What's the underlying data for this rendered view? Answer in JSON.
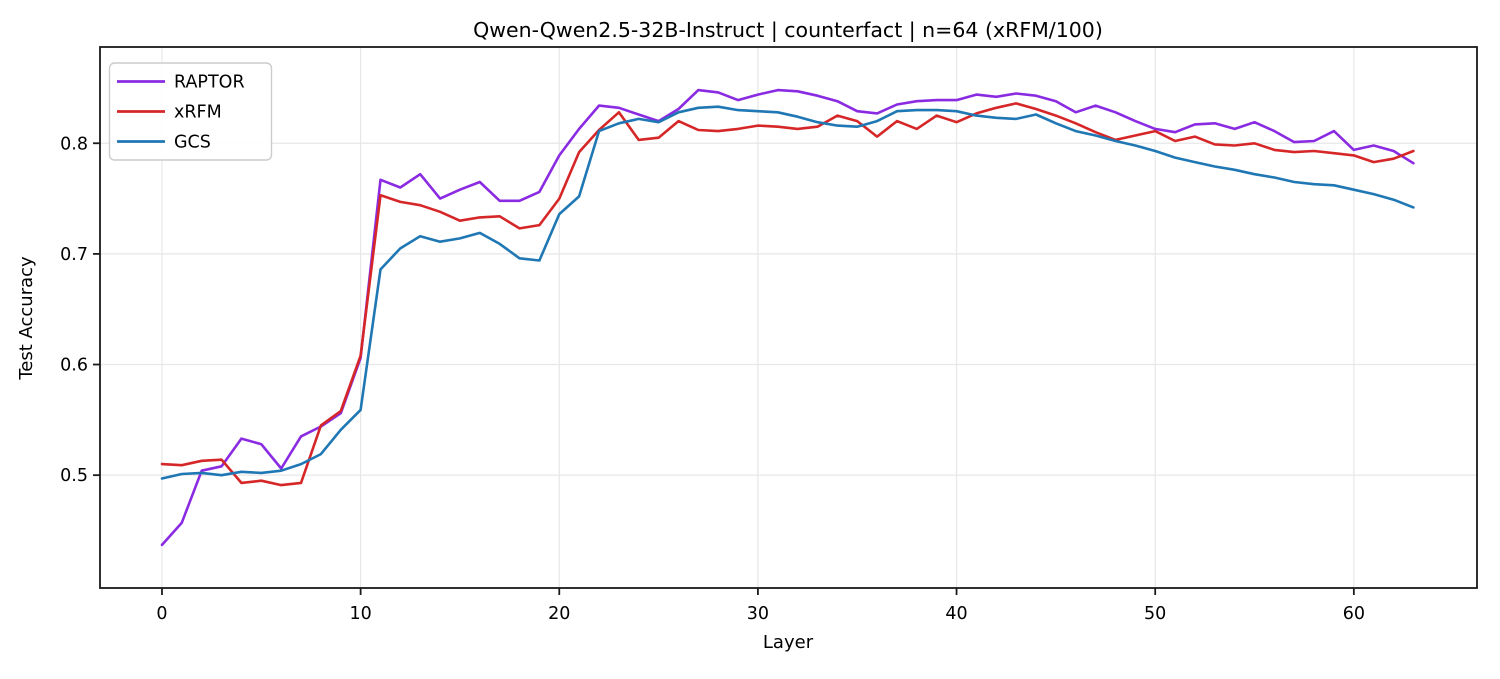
{
  "title": "Qwen-Qwen2.5-32B-Instruct | counterfact | n=64 (xRFM/100)",
  "axes": {
    "xlabel": "Layer",
    "ylabel": "Test Accuracy",
    "x_ticks": [
      0,
      10,
      20,
      30,
      40,
      50,
      60
    ],
    "y_ticks": [
      0.5,
      0.6,
      0.7,
      0.8
    ]
  },
  "legend": {
    "position": "top-left",
    "entries": [
      {
        "label": "RAPTOR",
        "color": "#8a2be2"
      },
      {
        "label": "xRFM",
        "color": "#d62728"
      },
      {
        "label": "GCS",
        "color": "#1f77b4"
      }
    ]
  },
  "colors": {
    "raptor": "#8a2be2",
    "xrfm": "#d62728",
    "gcs": "#1f77b4",
    "grid": "#e7e7e7",
    "spine": "#1a1a1a"
  },
  "chart_data": {
    "type": "line",
    "title": "Qwen-Qwen2.5-32B-Instruct | counterfact | n=64 (xRFM/100)",
    "xlabel": "Layer",
    "ylabel": "Test Accuracy",
    "xlim": [
      -3.12,
      66.2
    ],
    "ylim": [
      0.398,
      0.887
    ],
    "grid": true,
    "legend_position": "upper left",
    "x": [
      0,
      1,
      2,
      3,
      4,
      5,
      6,
      7,
      8,
      9,
      10,
      11,
      12,
      13,
      14,
      15,
      16,
      17,
      18,
      19,
      20,
      21,
      22,
      23,
      24,
      25,
      26,
      27,
      28,
      29,
      30,
      31,
      32,
      33,
      34,
      35,
      36,
      37,
      38,
      39,
      40,
      41,
      42,
      43,
      44,
      45,
      46,
      47,
      48,
      49,
      50,
      51,
      52,
      53,
      54,
      55,
      56,
      57,
      58,
      59,
      60,
      61,
      62,
      63
    ],
    "series": [
      {
        "name": "RAPTOR",
        "color": "#8a2be2",
        "values": [
          0.437,
          0.457,
          0.504,
          0.508,
          0.533,
          0.528,
          0.506,
          0.535,
          0.544,
          0.556,
          0.606,
          0.767,
          0.76,
          0.772,
          0.75,
          0.758,
          0.765,
          0.748,
          0.748,
          0.756,
          0.789,
          0.813,
          0.834,
          0.832,
          0.826,
          0.82,
          0.831,
          0.848,
          0.846,
          0.839,
          0.844,
          0.848,
          0.847,
          0.843,
          0.838,
          0.829,
          0.827,
          0.835,
          0.838,
          0.839,
          0.839,
          0.844,
          0.842,
          0.845,
          0.843,
          0.838,
          0.828,
          0.834,
          0.828,
          0.82,
          0.813,
          0.81,
          0.817,
          0.818,
          0.813,
          0.819,
          0.811,
          0.801,
          0.802,
          0.811,
          0.794,
          0.798,
          0.793,
          0.782
        ]
      },
      {
        "name": "xRFM",
        "color": "#d62728",
        "values": [
          0.51,
          0.509,
          0.513,
          0.514,
          0.493,
          0.495,
          0.491,
          0.493,
          0.545,
          0.558,
          0.608,
          0.753,
          0.747,
          0.744,
          0.738,
          0.73,
          0.733,
          0.734,
          0.723,
          0.726,
          0.75,
          0.792,
          0.812,
          0.828,
          0.803,
          0.805,
          0.82,
          0.812,
          0.811,
          0.813,
          0.816,
          0.815,
          0.813,
          0.815,
          0.825,
          0.82,
          0.806,
          0.82,
          0.813,
          0.825,
          0.819,
          0.827,
          0.832,
          0.836,
          0.831,
          0.825,
          0.818,
          0.81,
          0.803,
          0.807,
          0.811,
          0.802,
          0.806,
          0.799,
          0.798,
          0.8,
          0.794,
          0.792,
          0.793,
          0.791,
          0.789,
          0.783,
          0.786,
          0.793
        ]
      },
      {
        "name": "GCS",
        "color": "#1f77b4",
        "values": [
          0.497,
          0.501,
          0.502,
          0.5,
          0.503,
          0.502,
          0.504,
          0.51,
          0.519,
          0.541,
          0.559,
          0.686,
          0.705,
          0.716,
          0.711,
          0.714,
          0.719,
          0.709,
          0.696,
          0.694,
          0.736,
          0.752,
          0.811,
          0.818,
          0.822,
          0.819,
          0.828,
          0.832,
          0.833,
          0.83,
          0.829,
          0.828,
          0.824,
          0.819,
          0.816,
          0.815,
          0.82,
          0.829,
          0.83,
          0.83,
          0.829,
          0.825,
          0.823,
          0.822,
          0.826,
          0.818,
          0.811,
          0.807,
          0.802,
          0.798,
          0.793,
          0.787,
          0.783,
          0.779,
          0.776,
          0.772,
          0.769,
          0.765,
          0.763,
          0.762,
          0.758,
          0.754,
          0.749,
          0.742
        ]
      }
    ]
  }
}
